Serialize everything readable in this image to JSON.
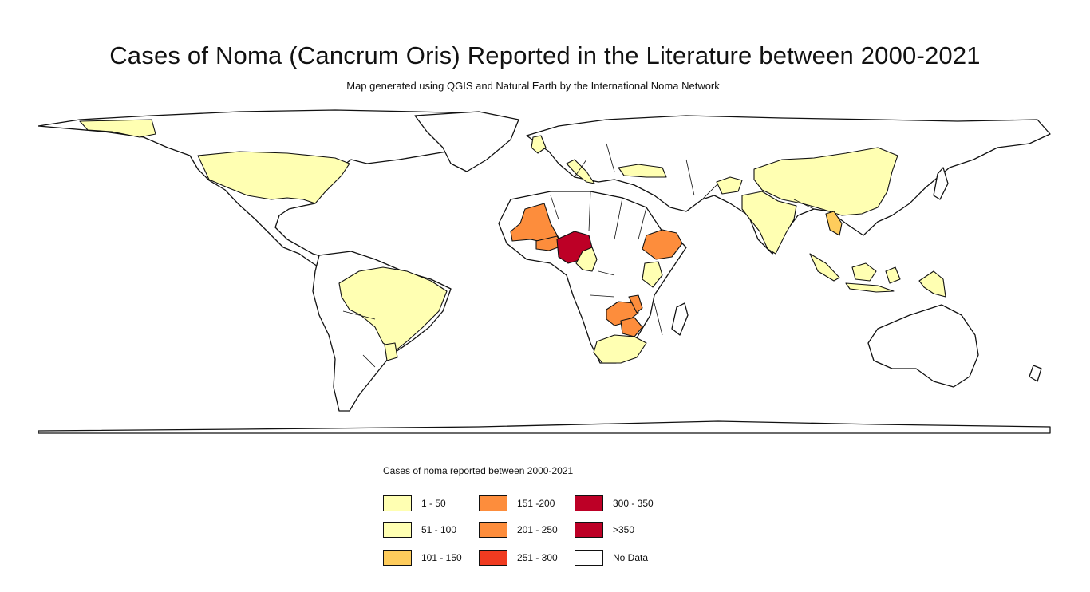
{
  "title": "Cases of Noma (Cancrum Oris) Reported in the Literature between 2000-2021",
  "subtitle": "Map generated using QGIS and Natural Earth by the International Noma Network",
  "legend": {
    "title": "Cases of noma reported between 2000-2021",
    "items": [
      {
        "label": "1 - 50",
        "color": "#ffffb2"
      },
      {
        "label": "51 - 100",
        "color": "#ffffb2"
      },
      {
        "label": "101 - 150",
        "color": "#fecc5c"
      },
      {
        "label": "151 -200",
        "color": "#fd8d3c"
      },
      {
        "label": "201 - 250",
        "color": "#fd8d3c"
      },
      {
        "label": "251 - 300",
        "color": "#f03b20"
      },
      {
        "label": "300 - 350",
        "color": "#bd0026"
      },
      {
        "label": ">350",
        "color": "#bd0026"
      },
      {
        "label": "No Data",
        "color": "#ffffff"
      }
    ]
  },
  "countries": [
    {
      "name": "United States",
      "category": "1 - 50"
    },
    {
      "name": "Alaska",
      "category": "1 - 50"
    },
    {
      "name": "Brazil",
      "category": "1 - 50"
    },
    {
      "name": "Uruguay",
      "category": "1 - 50"
    },
    {
      "name": "United Kingdom",
      "category": "1 - 50"
    },
    {
      "name": "Italy",
      "category": "1 - 50"
    },
    {
      "name": "Turkey",
      "category": "1 - 50"
    },
    {
      "name": "Afghanistan",
      "category": "1 - 50"
    },
    {
      "name": "China",
      "category": "1 - 50"
    },
    {
      "name": "India",
      "category": "1 - 50"
    },
    {
      "name": "Laos",
      "category": "101 - 150"
    },
    {
      "name": "Indonesia",
      "category": "1 - 50"
    },
    {
      "name": "Papua New Guinea",
      "category": "1 - 50"
    },
    {
      "name": "Mali",
      "category": "151 -200"
    },
    {
      "name": "Burkina Faso",
      "category": "151 -200"
    },
    {
      "name": "Nigeria",
      "category": ">350"
    },
    {
      "name": "Cameroon",
      "category": "1 - 50"
    },
    {
      "name": "Ethiopia",
      "category": "151 -200"
    },
    {
      "name": "Kenya",
      "category": "1 - 50"
    },
    {
      "name": "Zambia",
      "category": "151 -200"
    },
    {
      "name": "Zimbabwe",
      "category": "151 -200"
    },
    {
      "name": "Malawi",
      "category": "151 -200"
    },
    {
      "name": "South Africa",
      "category": "1 - 50"
    }
  ]
}
